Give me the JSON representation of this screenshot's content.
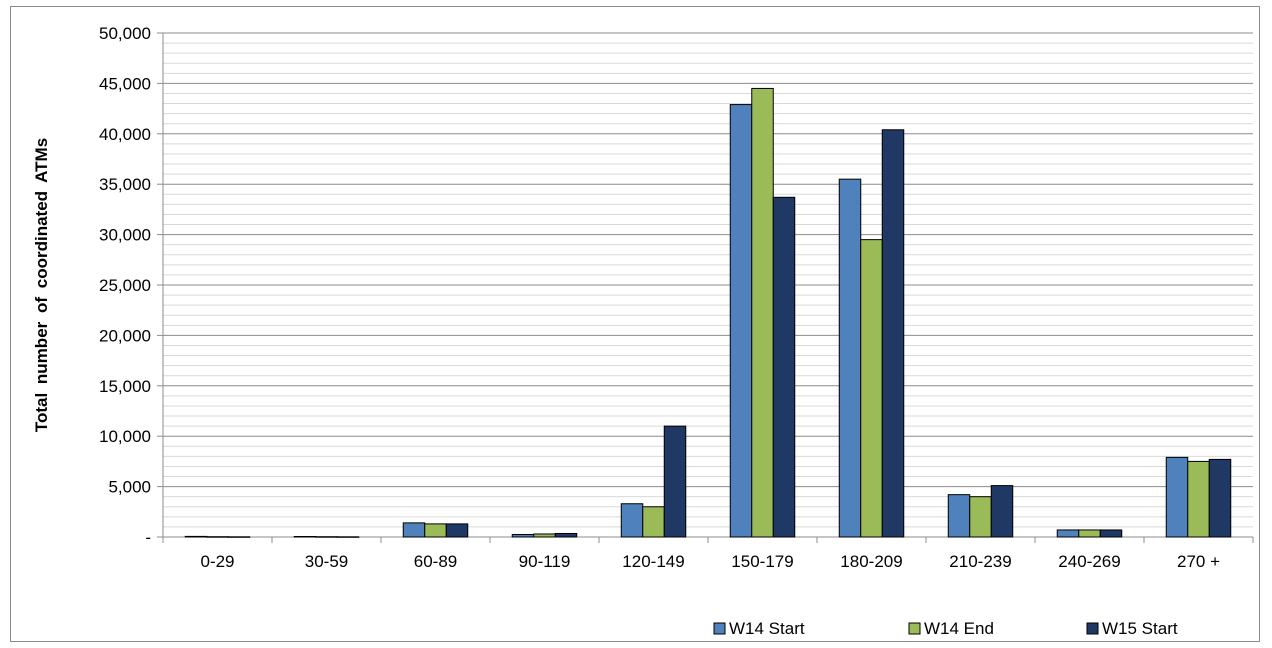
{
  "chart_data": {
    "type": "bar",
    "title": "",
    "xlabel": "",
    "ylabel": "Total number of coordinated ATMs",
    "categories": [
      "0-29",
      "30-59",
      "60-89",
      "90-119",
      "120-149",
      "150-179",
      "180-209",
      "210-239",
      "240-269",
      "270 +"
    ],
    "series": [
      {
        "name": "W14 Start",
        "color": "#4f81bd",
        "values": [
          60,
          50,
          1400,
          250,
          3300,
          42900,
          35500,
          4200,
          700,
          7900
        ]
      },
      {
        "name": "W14 End",
        "color": "#9bbb59",
        "values": [
          30,
          30,
          1300,
          300,
          3000,
          44500,
          29500,
          4000,
          700,
          7500
        ]
      },
      {
        "name": "W15 Start",
        "color": "#1f3864",
        "values": [
          20,
          20,
          1300,
          350,
          11000,
          33700,
          40400,
          5100,
          700,
          7700
        ]
      }
    ],
    "ylim": [
      0,
      50000
    ],
    "y_major_ticks": [
      "-",
      "5,000",
      "10,000",
      "15,000",
      "20,000",
      "25,000",
      "30,000",
      "35,000",
      "40,000",
      "45,000",
      "50,000"
    ],
    "y_major_step": 5000,
    "y_minor_step": 1000,
    "grid": true,
    "legend_position": "bottom-right"
  }
}
